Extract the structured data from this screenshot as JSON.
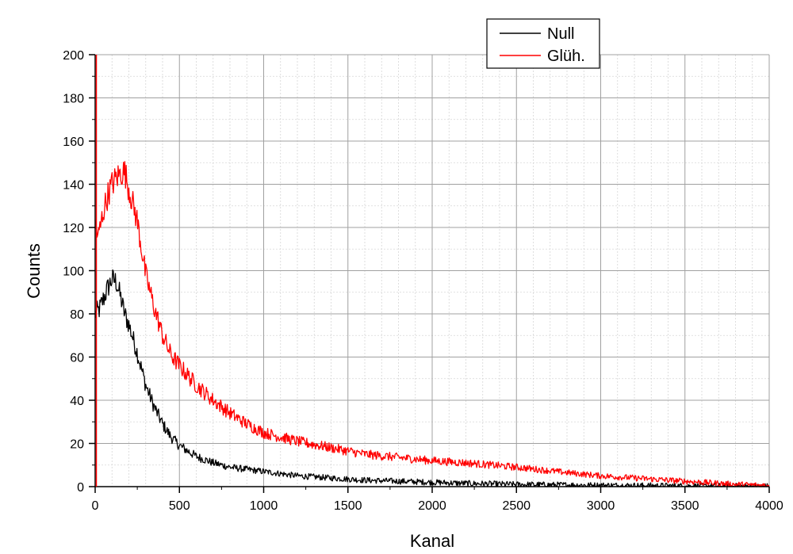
{
  "chart_data": {
    "type": "line",
    "xlabel": "Kanal",
    "ylabel": "Counts",
    "xlim": [
      0,
      4000
    ],
    "ylim": [
      0,
      200
    ],
    "x_ticks": [
      0,
      500,
      1000,
      1500,
      2000,
      2500,
      3000,
      3500,
      4000
    ],
    "y_ticks": [
      0,
      20,
      40,
      60,
      80,
      100,
      120,
      140,
      160,
      180,
      200
    ],
    "x_tick_labels": [
      "0",
      "500",
      "1000",
      "1500",
      "2000",
      "2500",
      "3000",
      "3500",
      "4000"
    ],
    "y_tick_labels": [
      "0",
      "20",
      "40",
      "60",
      "80",
      "100",
      "120",
      "140",
      "160",
      "180",
      "200"
    ],
    "grid": true,
    "legend_position": "top-right",
    "series": [
      {
        "name": "Null",
        "color": "#000000",
        "x": [
          0,
          25,
          50,
          75,
          100,
          125,
          150,
          175,
          200,
          250,
          300,
          350,
          400,
          450,
          500,
          600,
          700,
          800,
          900,
          1000,
          1200,
          1400,
          1600,
          1800,
          2000,
          2200,
          2500,
          3000,
          3500,
          4000
        ],
        "y": [
          80,
          82,
          87,
          92,
          96,
          95,
          88,
          80,
          75,
          62,
          47,
          37,
          29,
          23,
          19,
          14,
          11,
          9,
          8,
          7,
          5,
          4,
          3,
          2.5,
          2,
          1.5,
          1,
          0.6,
          0.3,
          0.1
        ]
      },
      {
        "name": "Glüh.",
        "color": "#ff0000",
        "x": [
          0,
          20,
          50,
          75,
          100,
          125,
          150,
          175,
          200,
          250,
          300,
          350,
          400,
          450,
          500,
          600,
          700,
          800,
          900,
          1000,
          1200,
          1400,
          1600,
          1800,
          2000,
          2200,
          2500,
          2800,
          3000,
          3200,
          3500,
          3800,
          4000
        ],
        "y": [
          120,
          116,
          128,
          135,
          140,
          143,
          145,
          146,
          138,
          123,
          98,
          83,
          70,
          61,
          56,
          47,
          40,
          34,
          29,
          25,
          21,
          18,
          15,
          13.5,
          12,
          11,
          9,
          6.5,
          5,
          4,
          2.5,
          1,
          0.5
        ]
      }
    ]
  }
}
